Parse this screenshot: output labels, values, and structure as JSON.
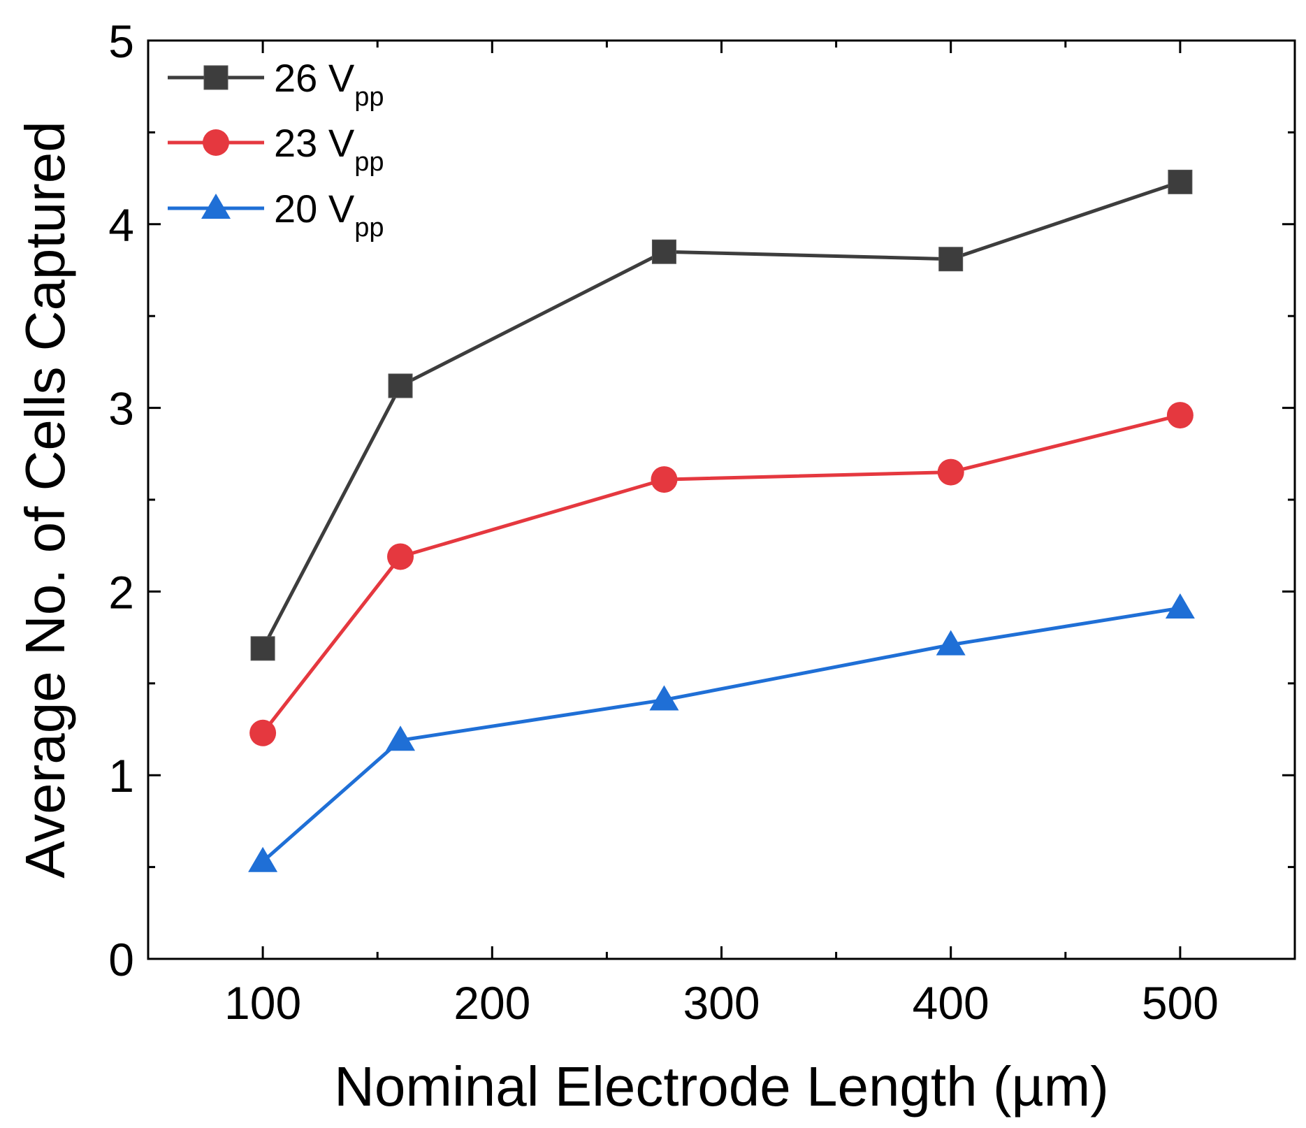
{
  "chart_data": {
    "type": "line",
    "title": "",
    "xlabel": "Nominal Electrode Length (µm)",
    "ylabel": "Average No. of Cells Captured",
    "xlim": [
      50,
      550
    ],
    "ylim": [
      0,
      5
    ],
    "xticks": [
      100,
      200,
      300,
      400,
      500
    ],
    "xtick_labels": [
      "100",
      "200",
      "300",
      "400",
      "500"
    ],
    "yticks": [
      0,
      1,
      2,
      3,
      4,
      5
    ],
    "ytick_labels": [
      "0",
      "1",
      "2",
      "3",
      "4",
      "5"
    ],
    "x_minor_ticks": [
      150,
      250,
      350,
      450
    ],
    "y_minor_ticks": [
      0.5,
      1.5,
      2.5,
      3.5,
      4.5
    ],
    "grid": false,
    "legend_position": "top-left",
    "series": [
      {
        "name": "26 V",
        "name_sub": "pp",
        "color": "#3d3d3d",
        "marker": "square",
        "x": [
          100,
          160,
          275,
          400,
          500
        ],
        "values": [
          1.69,
          3.12,
          3.85,
          3.81,
          4.23
        ]
      },
      {
        "name": "23 V",
        "name_sub": "pp",
        "color": "#e5383f",
        "marker": "circle",
        "x": [
          100,
          160,
          275,
          400,
          500
        ],
        "values": [
          1.23,
          2.19,
          2.61,
          2.65,
          2.96
        ]
      },
      {
        "name": "20 V",
        "name_sub": "pp",
        "color": "#1f6fd6",
        "marker": "triangle",
        "x": [
          100,
          160,
          275,
          400,
          500
        ],
        "values": [
          0.53,
          1.19,
          1.41,
          1.71,
          1.91
        ]
      }
    ]
  }
}
